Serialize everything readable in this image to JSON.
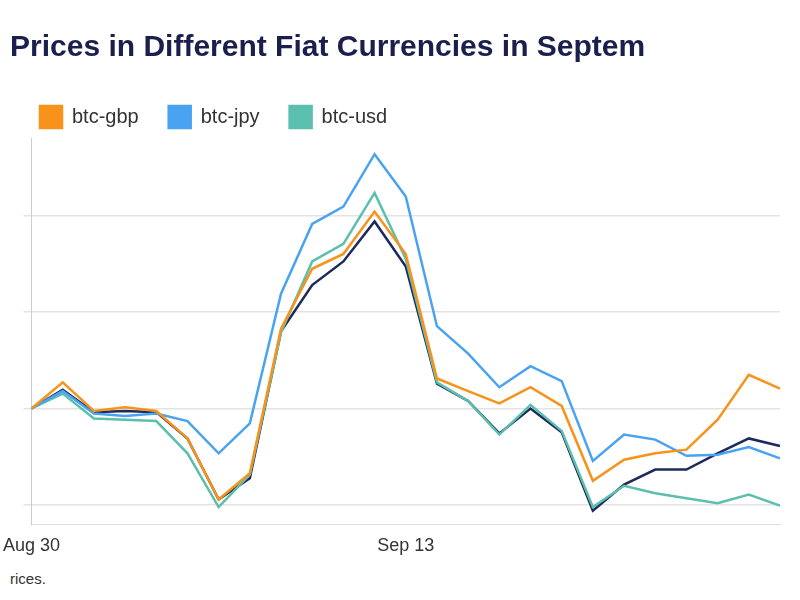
{
  "chart_data": {
    "type": "line",
    "title": "Prices in Different Fiat Currencies in Septem",
    "caption": "rices.",
    "categories": [
      "Aug 30",
      null,
      null,
      null,
      null,
      null,
      null,
      null,
      null,
      null,
      null,
      null,
      "Sep 13",
      null,
      null,
      null,
      null,
      null,
      null,
      null,
      null,
      null,
      null,
      null,
      null
    ],
    "series": [
      {
        "name": "btc-gbp",
        "color": "#f7931a",
        "values": [
          0,
          1.35,
          -0.13,
          0.06,
          -0.13,
          -1.55,
          -4.71,
          -3.35,
          4.13,
          7.23,
          8.0,
          10.19,
          8.0,
          1.55,
          0.9,
          0.26,
          1.1,
          0.13,
          -3.74,
          -2.65,
          -2.32,
          -2.13,
          -0.58,
          1.74,
          1.03
        ]
      },
      {
        "name": "btc-jpy",
        "color": "#4aa3f0",
        "values": [
          0,
          0.9,
          -0.26,
          -0.39,
          -0.26,
          -0.65,
          -2.32,
          -0.77,
          5.94,
          9.55,
          10.45,
          13.16,
          10.97,
          4.26,
          2.84,
          1.1,
          2.19,
          1.42,
          -2.71,
          -1.35,
          -1.61,
          -2.45,
          -2.39,
          -2.0,
          -2.58
        ]
      },
      {
        "name": "btc-usd",
        "color": "#5bbfb0",
        "values": [
          0,
          0.77,
          -0.52,
          -0.58,
          -0.65,
          -2.32,
          -5.1,
          -3.42,
          3.94,
          7.61,
          8.52,
          11.16,
          7.74,
          1.35,
          0.39,
          -1.35,
          0.19,
          -1.16,
          -5.1,
          -4.0,
          -4.39,
          -4.65,
          -4.9,
          -4.45,
          -5.03
        ]
      },
      {
        "color": "#1f2a5c",
        "values": [
          0,
          0.97,
          -0.19,
          -0.13,
          -0.19,
          -1.55,
          -4.71,
          -3.61,
          4.0,
          6.39,
          7.61,
          9.68,
          7.35,
          1.29,
          0.39,
          -1.29,
          0,
          -1.23,
          -5.29,
          -3.94,
          -3.16,
          -3.16,
          -2.32,
          -1.55,
          -1.94
        ]
      }
    ],
    "ylim": [
      -6,
      14
    ],
    "yticks": [
      -5,
      0,
      5,
      10
    ],
    "grid": true,
    "legend": "top",
    "tick_labels": "x"
  }
}
